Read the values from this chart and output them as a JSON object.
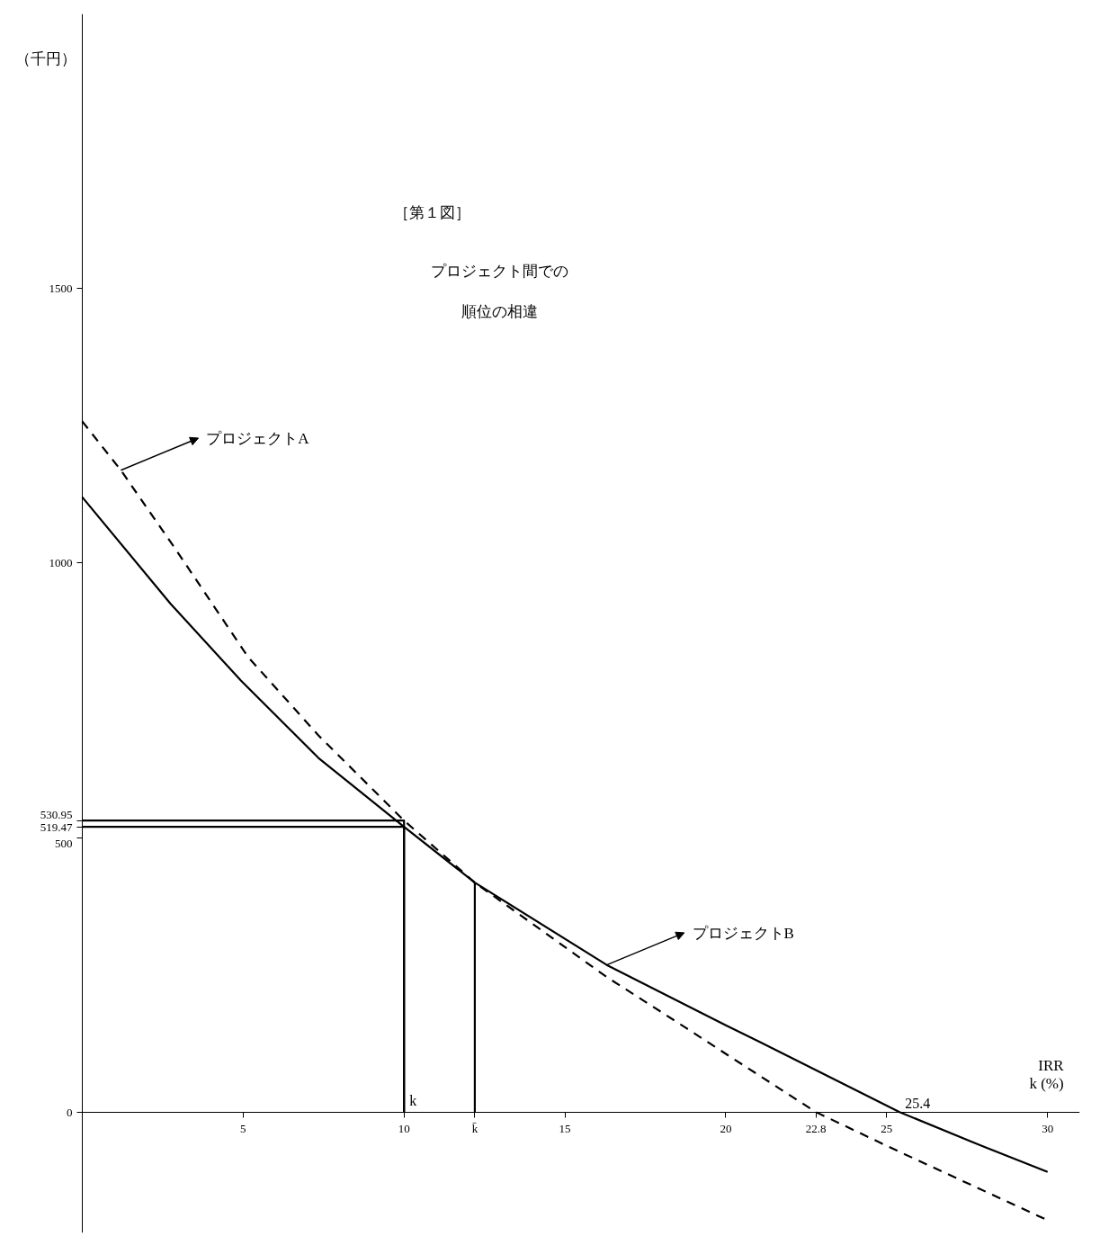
{
  "chart_data": {
    "type": "line",
    "title": "［第１図］",
    "subtitle": "プロジェクト間での",
    "ylabel": "（千円）",
    "xlabel": "IRR\nk (%)",
    "xlim": [
      0,
      31
    ],
    "ylim": [
      -220,
      2000
    ],
    "xticks": [
      5,
      10,
      {
        "value": 12.2,
        "label": "k̄"
      },
      15,
      20,
      {
        "value": 22.8,
        "label": "22.8"
      },
      25,
      30
    ],
    "yticks": [
      0,
      500,
      {
        "value": 519.47,
        "label": "519.47"
      },
      {
        "value": 530.95,
        "label": "530.95"
      },
      1000,
      1500
    ],
    "grid": false,
    "series": [
      {
        "color": "#000000",
        "line_style": "dashed",
        "x": [
          0,
          1.2,
          2.96,
          5.15,
          7.34,
          10,
          12.2,
          16.3,
          18.85,
          20,
          22.8,
          25.2,
          30
        ],
        "values": [
          1258,
          1169,
          1020,
          829,
          686,
          530.95,
          418,
          246,
          150,
          106,
          0,
          -67,
          -197
        ]
      },
      {
        "color": "#000000",
        "line_style": "solid",
        "x": [
          0,
          2.74,
          4.93,
          7.34,
          10,
          12.2,
          16.3,
          20,
          21.04,
          25.4,
          27.97,
          30
        ],
        "values": [
          1120,
          926,
          786,
          645,
          519.47,
          418,
          268,
          158,
          128,
          0,
          -62,
          -109
        ]
      },
      {
        "color": "#000000",
        "line_style": "solid",
        "x": [
          0,
          10,
          10
        ],
        "values": [
          530.95,
          530.95,
          0
        ]
      },
      {
        "color": "#000000",
        "line_style": "solid",
        "x": [
          0,
          10,
          10
        ],
        "values": [
          519.47,
          519.47,
          0
        ]
      },
      {
        "color": "#000000",
        "line_style": "solid",
        "x": [
          12.2,
          12.2
        ],
        "values": [
          0,
          418
        ]
      }
    ],
    "annotations": [
      "順位の相違",
      {
        "text": "プロジェクトA",
        "x": 1.2,
        "y": 1169
      },
      {
        "text": "プロジェクトB",
        "x": 16.3,
        "y": 268
      },
      {
        "text": "k",
        "x": 10,
        "y": 0
      },
      {
        "text": "25.4",
        "x": 25.4,
        "y": 0
      }
    ]
  }
}
